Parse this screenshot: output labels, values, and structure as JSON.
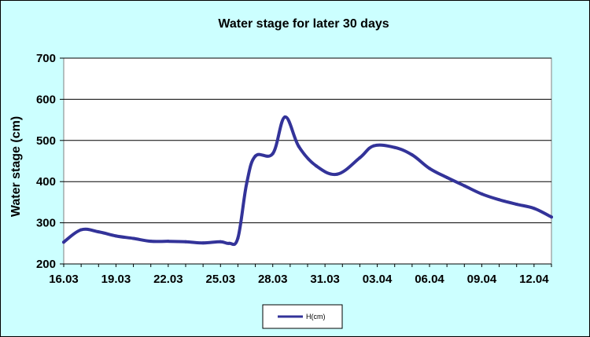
{
  "colors": {
    "background": "#ccffff",
    "plot_area": "#ffffff",
    "series": "#333399",
    "gridline": "#000000"
  },
  "chart_data": {
    "type": "line",
    "title": "Water stage for later 30 days",
    "xlabel": "",
    "ylabel": "Water stage (cm)",
    "ylim": [
      200,
      700
    ],
    "yticks": [
      200,
      300,
      400,
      500,
      600,
      700
    ],
    "xlim": [
      0,
      28
    ],
    "xtick_labels": [
      "16.03",
      "19.03",
      "22.03",
      "25.03",
      "28.03",
      "31.03",
      "03.04",
      "06.04",
      "09.04",
      "12.04"
    ],
    "xtick_positions": [
      0,
      3,
      6,
      9,
      12,
      15,
      18,
      21,
      24,
      27
    ],
    "grid": "horizontal",
    "legend_position": "bottom",
    "series": [
      {
        "name": "H(cm)",
        "color": "#333399",
        "x": [
          0,
          1,
          2,
          3,
          4,
          5,
          6,
          7,
          8,
          9,
          9.5,
          10,
          10.5,
          11,
          12,
          12.7,
          13.5,
          14.5,
          15.7,
          17,
          17.8,
          19,
          20,
          21,
          22,
          23,
          24,
          25,
          26,
          27,
          28
        ],
        "values": [
          253,
          283,
          278,
          268,
          262,
          255,
          255,
          254,
          251,
          254,
          250,
          263,
          395,
          462,
          468,
          557,
          485,
          438,
          418,
          458,
          487,
          483,
          465,
          432,
          410,
          390,
          370,
          356,
          345,
          335,
          314
        ]
      }
    ]
  }
}
